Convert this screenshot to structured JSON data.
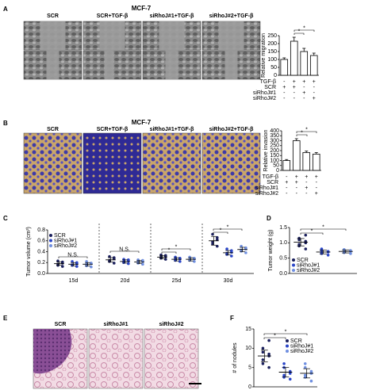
{
  "panel_a": {
    "letter": "A",
    "title": "MCF-7",
    "columns": [
      "SCR",
      "SCR+TGF-β",
      "siRhoJ#1+TGF-β",
      "siRhoJ#2+TGF-β"
    ]
  },
  "panel_b": {
    "letter": "B",
    "title": "MCF-7",
    "columns": [
      "SCR",
      "SCR+TGF-β",
      "siRhoJ#1+TGF-β",
      "siRhoJ#2+TGF-β"
    ]
  },
  "panel_c": {
    "letter": "C"
  },
  "panel_d": {
    "letter": "D"
  },
  "panel_e": {
    "letter": "E",
    "columns": [
      "SCR",
      "siRhoJ#1",
      "siRhoJ#2"
    ]
  },
  "panel_f": {
    "letter": "F"
  },
  "chart_data": [
    {
      "type": "bar",
      "y_label": "Relative migration",
      "values": [
        100,
        215,
        150,
        125
      ],
      "errors": [
        10,
        25,
        20,
        15
      ],
      "color": "#ffffff",
      "ylim": [
        0,
        250
      ],
      "yticks": [
        0,
        50,
        100,
        150,
        200,
        250
      ],
      "annotations": [
        "*",
        "*"
      ],
      "conditions": [
        {
          "name": "TGF-β",
          "signs": [
            "-",
            "+",
            "+",
            "+"
          ]
        },
        {
          "name": "SCR",
          "signs": [
            "+",
            "+",
            "-",
            "-"
          ]
        },
        {
          "name": "siRhoJ#1",
          "signs": [
            "-",
            "-",
            "+",
            "-"
          ]
        },
        {
          "name": "siRhoJ#2",
          "signs": [
            "-",
            "-",
            "-",
            "+"
          ]
        }
      ]
    },
    {
      "type": "bar",
      "y_label": "Relative invasion",
      "values": [
        100,
        300,
        180,
        165
      ],
      "errors": [
        10,
        20,
        15,
        15
      ],
      "color": "#ffffff",
      "ylim": [
        0,
        400
      ],
      "yticks": [
        0,
        50,
        100,
        150,
        200,
        250,
        300,
        350,
        400
      ],
      "annotations": [
        "*",
        "*"
      ],
      "conditions": [
        {
          "name": "TGF-β",
          "signs": [
            "-",
            "+",
            "+",
            "+"
          ]
        },
        {
          "name": "SCR",
          "signs": [
            "+",
            "+",
            "-",
            "-"
          ]
        },
        {
          "name": "siRhoJ#1",
          "signs": [
            "-",
            "-",
            "+",
            "-"
          ]
        },
        {
          "name": "siRhoJ#2",
          "signs": [
            "-",
            "-",
            "-",
            "+"
          ]
        }
      ]
    },
    {
      "type": "dot",
      "y_label": "Tumor volume (cm³)",
      "categories": [
        "15d",
        "20d",
        "25d",
        "30d"
      ],
      "ylim": [
        0,
        0.8
      ],
      "yticks": [
        {
          "value": 0,
          "label": "0.0"
        },
        0.2,
        0.4,
        0.6,
        0.8
      ],
      "annotations": [
        "N.S.",
        "N.S.",
        "*",
        "*",
        "*",
        "*"
      ],
      "series": [
        {
          "name": "SCR",
          "color": "#1a1f5c",
          "values": [
            0.18,
            0.25,
            0.3,
            0.6
          ],
          "errors": [
            0.03,
            0.04,
            0.03,
            0.08
          ],
          "points": [
            [
              0.13,
              0.15,
              0.17,
              0.19,
              0.21,
              0.23
            ],
            [
              0.19,
              0.22,
              0.24,
              0.27,
              0.29,
              0.31
            ],
            [
              0.26,
              0.28,
              0.3,
              0.31,
              0.33,
              0.34
            ],
            [
              0.5,
              0.54,
              0.58,
              0.62,
              0.66,
              0.72
            ]
          ]
        },
        {
          "name": "siRhoJ#1",
          "color": "#2b46c8",
          "values": [
            0.17,
            0.22,
            0.26,
            0.38
          ],
          "errors": [
            0.03,
            0.03,
            0.03,
            0.04
          ],
          "points": [
            [
              0.13,
              0.15,
              0.16,
              0.18,
              0.2,
              0.22
            ],
            [
              0.18,
              0.2,
              0.22,
              0.23,
              0.25,
              0.26
            ],
            [
              0.22,
              0.24,
              0.26,
              0.27,
              0.28,
              0.3
            ],
            [
              0.32,
              0.35,
              0.37,
              0.39,
              0.42,
              0.45
            ]
          ]
        },
        {
          "name": "siRhoJ#2",
          "color": "#6f8fe0",
          "values": [
            0.17,
            0.21,
            0.26,
            0.44
          ],
          "errors": [
            0.03,
            0.03,
            0.03,
            0.04
          ],
          "points": [
            [
              0.12,
              0.14,
              0.17,
              0.18,
              0.19,
              0.22
            ],
            [
              0.17,
              0.19,
              0.21,
              0.22,
              0.24,
              0.25
            ],
            [
              0.22,
              0.24,
              0.25,
              0.27,
              0.28,
              0.3
            ],
            [
              0.38,
              0.41,
              0.43,
              0.45,
              0.47,
              0.5
            ]
          ]
        }
      ]
    },
    {
      "type": "dot",
      "y_label": "Tumor weight (g)",
      "ylim": [
        0,
        1.5
      ],
      "yticks": [
        {
          "value": 0,
          "label": "0.0"
        },
        0.5,
        {
          "value": 1,
          "label": "1.0"
        },
        1.5
      ],
      "annotations": [
        "*",
        "*"
      ],
      "series": [
        {
          "name": "SCR",
          "color": "#1a1f5c",
          "values": [
            1.02
          ],
          "errors": [
            0.12
          ],
          "points": [
            [
              0.8,
              0.9,
              0.95,
              1.0,
              1.05,
              1.1,
              1.15,
              1.25
            ]
          ]
        },
        {
          "name": "siRhoJ#1",
          "color": "#2b46c8",
          "values": [
            0.7
          ],
          "errors": [
            0.06
          ],
          "points": [
            [
              0.6,
              0.65,
              0.68,
              0.7,
              0.72,
              0.75,
              0.8
            ]
          ]
        },
        {
          "name": "siRhoJ#2",
          "color": "#6f8fe0",
          "values": [
            0.72
          ],
          "errors": [
            0.05
          ],
          "points": [
            [
              0.65,
              0.68,
              0.7,
              0.72,
              0.75,
              0.78
            ]
          ]
        }
      ]
    },
    {
      "type": "dot",
      "y_label": "# of nodules",
      "ylim": [
        0,
        15
      ],
      "yticks": [
        0,
        5,
        10,
        15
      ],
      "annotations": [
        "*",
        "*"
      ],
      "series": [
        {
          "name": "SCR",
          "color": "#1a1f5c",
          "values": [
            8
          ],
          "errors": [
            1.5
          ],
          "points": [
            [
              5,
              6,
              7,
              8,
              8.5,
              9,
              10,
              12
            ]
          ]
        },
        {
          "name": "siRhoJ#1",
          "color": "#2b46c8",
          "values": [
            3.8
          ],
          "errors": [
            1.2
          ],
          "points": [
            [
              2,
              2.5,
              3,
              3.5,
              4,
              5,
              6
            ]
          ]
        },
        {
          "name": "siRhoJ#2",
          "color": "#6f8fe0",
          "values": [
            3.5
          ],
          "errors": [
            1.2
          ],
          "points": [
            [
              1.5,
              2.5,
              3,
              3.5,
              4,
              5,
              6
            ]
          ]
        }
      ]
    }
  ]
}
